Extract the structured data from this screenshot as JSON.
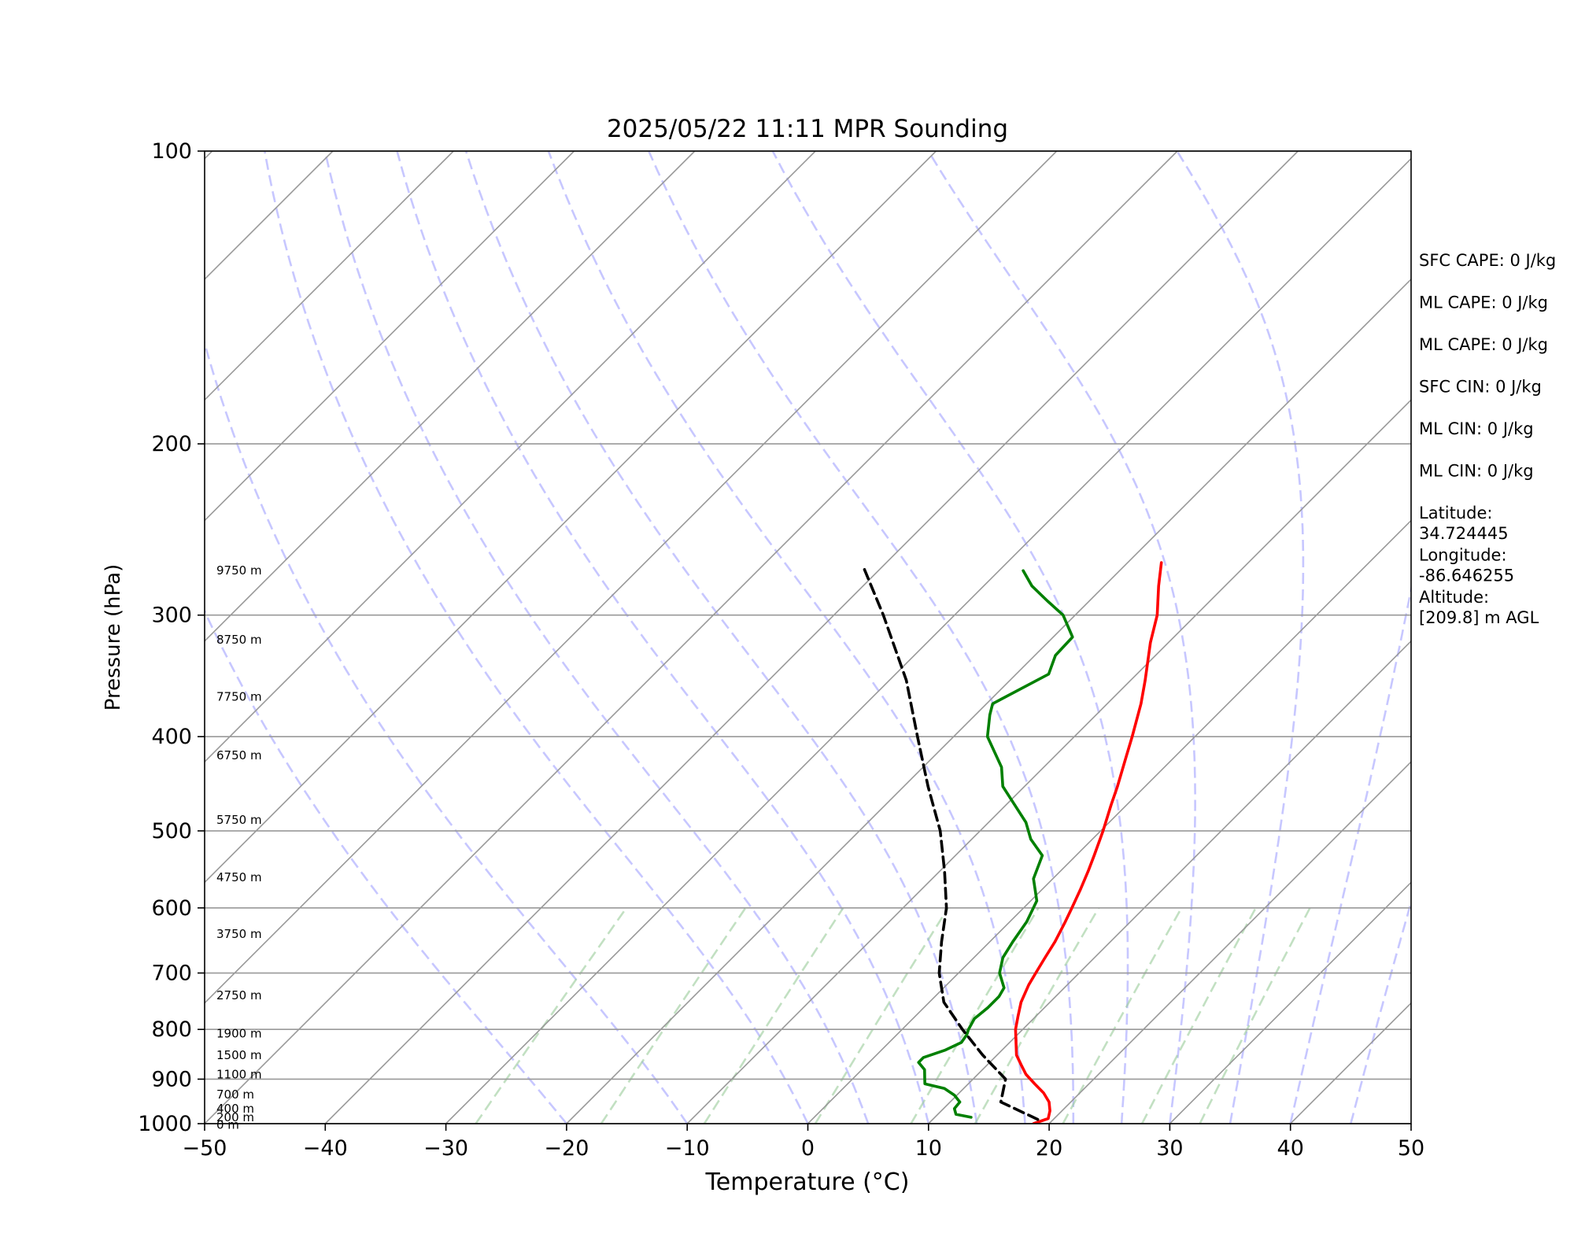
{
  "chart_data": {
    "type": "skew-t",
    "title": "2025/05/22 11:11 MPR Sounding",
    "xlabel": "Temperature (°C)",
    "ylabel": "Pressure (hPa)",
    "xlim": [
      -50,
      50
    ],
    "ylim": [
      1000,
      100
    ],
    "y_scale": "log",
    "x_ticks": [
      "−50",
      "−40",
      "−30",
      "−20",
      "−10",
      "0",
      "10",
      "20",
      "30",
      "40",
      "50"
    ],
    "y_ticks": [
      100,
      200,
      300,
      400,
      500,
      600,
      700,
      800,
      900,
      1000
    ],
    "grid": true,
    "series": [
      {
        "color": "#ff0000",
        "style": "solid",
        "points": [
          [
            1000,
            18.7
          ],
          [
            988,
            19.5
          ],
          [
            970,
            19.0
          ],
          [
            950,
            18.2
          ],
          [
            930,
            17.0
          ],
          [
            910,
            15.5
          ],
          [
            890,
            14.0
          ],
          [
            870,
            12.8
          ],
          [
            850,
            11.6
          ],
          [
            820,
            10.3
          ],
          [
            800,
            9.4
          ],
          [
            775,
            8.5
          ],
          [
            750,
            7.6
          ],
          [
            720,
            6.8
          ],
          [
            700,
            6.4
          ],
          [
            675,
            5.9
          ],
          [
            650,
            5.4
          ],
          [
            620,
            4.6
          ],
          [
            600,
            4.0
          ],
          [
            575,
            3.2
          ],
          [
            550,
            2.3
          ],
          [
            530,
            1.5
          ],
          [
            500,
            0.2
          ],
          [
            470,
            -1.3
          ],
          [
            450,
            -2.3
          ],
          [
            420,
            -4.0
          ],
          [
            400,
            -5.2
          ],
          [
            370,
            -7.2
          ],
          [
            350,
            -8.8
          ],
          [
            320,
            -11.5
          ],
          [
            300,
            -13.2
          ],
          [
            280,
            -15.5
          ],
          [
            265,
            -17.2
          ]
        ]
      },
      {
        "color": "#008000",
        "style": "solid",
        "points": [
          [
            985,
            13.0
          ],
          [
            978,
            11.5
          ],
          [
            965,
            10.9
          ],
          [
            950,
            10.8
          ],
          [
            935,
            9.8
          ],
          [
            920,
            8.4
          ],
          [
            910,
            6.4
          ],
          [
            900,
            6.0
          ],
          [
            880,
            5.2
          ],
          [
            865,
            4.1
          ],
          [
            855,
            4.1
          ],
          [
            840,
            5.3
          ],
          [
            825,
            6.0
          ],
          [
            810,
            5.8
          ],
          [
            800,
            5.5
          ],
          [
            780,
            5.1
          ],
          [
            760,
            5.3
          ],
          [
            740,
            5.3
          ],
          [
            725,
            5.0
          ],
          [
            700,
            3.4
          ],
          [
            675,
            2.4
          ],
          [
            650,
            1.9
          ],
          [
            620,
            1.4
          ],
          [
            590,
            0.5
          ],
          [
            560,
            -1.6
          ],
          [
            530,
            -2.8
          ],
          [
            510,
            -5.1
          ],
          [
            490,
            -6.9
          ],
          [
            450,
            -11.8
          ],
          [
            430,
            -13.5
          ],
          [
            400,
            -17.2
          ],
          [
            380,
            -18.8
          ],
          [
            370,
            -19.5
          ],
          [
            345,
            -17.3
          ],
          [
            330,
            -18.3
          ],
          [
            316,
            -18.4
          ],
          [
            300,
            -21.0
          ],
          [
            290,
            -23.5
          ],
          [
            280,
            -26.0
          ],
          [
            270,
            -28.0
          ]
        ]
      },
      {
        "color": "#000000",
        "style": "dashed",
        "points": [
          [
            990,
            18.7
          ],
          [
            950,
            14.2
          ],
          [
            900,
            12.7
          ],
          [
            850,
            8.8
          ],
          [
            800,
            5.0
          ],
          [
            750,
            1.2
          ],
          [
            700,
            -1.6
          ],
          [
            650,
            -4.0
          ],
          [
            600,
            -6.4
          ],
          [
            550,
            -9.6
          ],
          [
            500,
            -13.3
          ],
          [
            450,
            -18.0
          ],
          [
            400,
            -23.0
          ],
          [
            350,
            -28.6
          ],
          [
            300,
            -35.9
          ],
          [
            269,
            -41.3
          ]
        ]
      }
    ],
    "height_labels": [
      "9750 m",
      "8750 m",
      "7750 m",
      "6750 m",
      "5750 m",
      "4750 m",
      "3750 m",
      "2750 m",
      "1900 m",
      "1500 m",
      "1100 m",
      "700 m",
      "400 m",
      "200 m",
      "0 m"
    ],
    "height_label_pressures": [
      270,
      318,
      364,
      418,
      487,
      558,
      638,
      738,
      808,
      850,
      890,
      933,
      965,
      985,
      1003
    ]
  },
  "annotations": [
    {
      "text": "SFC CAPE: 0 J/kg"
    },
    {
      "text": "ML CAPE: 0 J/kg"
    },
    {
      "text": "ML CAPE: 0 J/kg"
    },
    {
      "text": "SFC CIN: 0 J/kg"
    },
    {
      "text": "ML CIN: 0 J/kg"
    },
    {
      "text": "ML CIN: 0 J/kg"
    },
    {
      "text": "Latitude:",
      "text2": "34.724445"
    },
    {
      "text": "Longitude:",
      "text2": "-86.646255"
    },
    {
      "text": "Altitude:",
      "text2": "[209.8] m AGL"
    }
  ],
  "colors": {
    "temperature": "#ff0000",
    "dewpoint": "#008000",
    "parcel": "#000000",
    "dry_adiabats": "#ff9999",
    "moist_adiabats": "#9999ff",
    "mixing_ratio": "#99cc99",
    "isotherms": "#999999",
    "isobars": "#999999"
  }
}
